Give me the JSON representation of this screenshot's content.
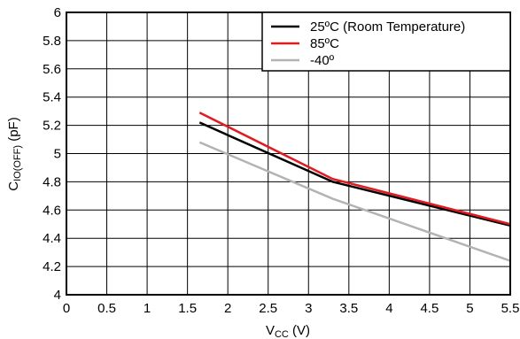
{
  "chart_data": {
    "type": "line",
    "title": "",
    "xlabel_main": "V",
    "xlabel_sub": "CC",
    "xlabel_suffix": " (V)",
    "ylabel_main": "C",
    "ylabel_sub": "IO(OFF)",
    "ylabel_suffix": " (pF)",
    "xlim": [
      0,
      5.5
    ],
    "ylim": [
      4,
      6
    ],
    "x_ticks": [
      "0",
      "0.5",
      "1",
      "1.5",
      "2",
      "2.5",
      "3",
      "3.5",
      "4",
      "4.5",
      "5",
      "5.5"
    ],
    "y_ticks": [
      "4",
      "4.2",
      "4.4",
      "4.6",
      "4.8",
      "5",
      "5.2",
      "5.4",
      "5.6",
      "5.8",
      "6"
    ],
    "grid": true,
    "legend_position": "top-right",
    "series": [
      {
        "name": "25ºC (Room Temperature)",
        "color": "#000000",
        "x": [
          1.65,
          3.3,
          5.5
        ],
        "y": [
          5.22,
          4.8,
          4.49
        ]
      },
      {
        "name": "85ºC",
        "color": "#e01b22",
        "x": [
          1.65,
          3.3,
          5.5
        ],
        "y": [
          5.29,
          4.82,
          4.5
        ]
      },
      {
        "name": "-40º",
        "color": "#b3b3b3",
        "x": [
          1.65,
          3.3,
          5.5
        ],
        "y": [
          5.08,
          4.68,
          4.24
        ]
      }
    ]
  }
}
